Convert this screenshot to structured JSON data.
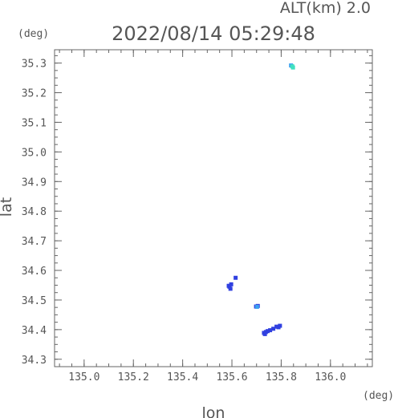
{
  "chart_data": {
    "type": "scatter",
    "title": "2022/08/14 05:29:48",
    "subtitle": "ALT(km) 2.0",
    "xlabel": "lon",
    "ylabel": "lat",
    "x_unit": "(deg)",
    "y_unit": "(deg)",
    "xlim": [
      134.88,
      136.17
    ],
    "ylim": [
      34.275,
      35.345
    ],
    "x_ticks": [
      135.0,
      135.2,
      135.4,
      135.6,
      135.8,
      136.0
    ],
    "x_tick_labels": [
      "135.0",
      "135.2",
      "135.4",
      "135.6",
      "135.8",
      "136.0"
    ],
    "y_ticks": [
      34.3,
      34.4,
      34.5,
      34.6,
      34.7,
      34.8,
      34.9,
      35.0,
      35.1,
      35.2,
      35.3
    ],
    "y_tick_labels": [
      "34.3",
      "34.4",
      "34.5",
      "34.6",
      "34.7",
      "34.8",
      "34.9",
      "35.0",
      "35.1",
      "35.2",
      "35.3"
    ],
    "grid": false,
    "series": [
      {
        "color": "#3040e0",
        "points": [
          [
            135.59,
            34.545
          ],
          [
            135.597,
            34.553
          ],
          [
            135.594,
            34.538
          ],
          [
            135.587,
            34.548
          ],
          [
            135.615,
            34.575
          ],
          [
            135.73,
            34.389
          ],
          [
            135.738,
            34.392
          ],
          [
            135.745,
            34.395
          ],
          [
            135.734,
            34.385
          ],
          [
            135.755,
            34.398
          ],
          [
            135.768,
            34.403
          ],
          [
            135.781,
            34.41
          ],
          [
            135.795,
            34.413
          ],
          [
            135.789,
            34.408
          ],
          [
            135.698,
            34.478
          ],
          [
            135.705,
            34.48
          ]
        ]
      },
      {
        "color": "#3aa0f0",
        "points": [
          [
            135.702,
            34.477
          ],
          [
            135.84,
            35.292
          ]
        ]
      },
      {
        "color": "#40e0c0",
        "points": [
          [
            135.848,
            35.285
          ],
          [
            135.845,
            35.289
          ]
        ]
      }
    ]
  }
}
